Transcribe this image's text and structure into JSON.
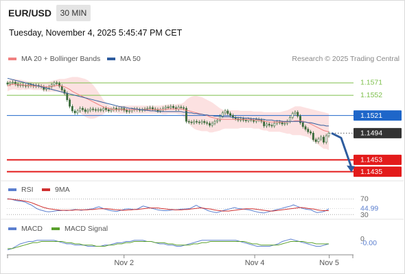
{
  "header": {
    "symbol": "EUR/USD",
    "timeframe": "30 MIN",
    "datetime": "Tuesday, November 4, 2025 5:45:47 PM CET"
  },
  "colors": {
    "ma20": "#f08080",
    "ma50": "#2e5c9e",
    "band_fill": "#fbdcdc",
    "candle": "#3b6b3b",
    "resistance": "#7cbf4a",
    "pivot": "#1e66c9",
    "support": "#e31b1b",
    "current_price": "#333333",
    "rsi": "#5b7fcf",
    "rsi_ma": "#d03030",
    "macd": "#5b7fcf",
    "macd_signal": "#5aa02c",
    "arrow": "#2e5c9e"
  },
  "chart_data": [
    {
      "type": "candlestick",
      "panel": "price",
      "legend": [
        {
          "label": "MA 20 + Bollinger Bands",
          "color_key": "ma20"
        },
        {
          "label": "MA 50",
          "color_key": "ma50"
        }
      ],
      "legend_placement": "top-left",
      "source": "Research © 2025 Trading Central",
      "x_ticks": [
        "Nov 2",
        "Nov 4",
        "Nov 5"
      ],
      "ylim": [
        1.1423,
        1.1593
      ],
      "levels": [
        {
          "label": "1.1571",
          "value": 1.1571,
          "kind": "resistance"
        },
        {
          "label": "1.1552",
          "value": 1.1552,
          "kind": "resistance"
        },
        {
          "label": "1.1521",
          "value": 1.1521,
          "kind": "pivot"
        },
        {
          "label": "1.1494",
          "value": 1.1494,
          "kind": "current"
        },
        {
          "label": "1.1453",
          "value": 1.1453,
          "kind": "support"
        },
        {
          "label": "1.1435",
          "value": 1.1435,
          "kind": "support"
        }
      ],
      "close": [
        1.1569,
        1.1571,
        1.1572,
        1.1569,
        1.1567,
        1.1568,
        1.1567,
        1.1566,
        1.1568,
        1.1567,
        1.1566,
        1.1567,
        1.1566,
        1.1565,
        1.1561,
        1.1563,
        1.1565,
        1.1568,
        1.1571,
        1.157,
        1.1566,
        1.156,
        1.1555,
        1.1545,
        1.1535,
        1.1528,
        1.1525,
        1.1528,
        1.1532,
        1.153,
        1.1527,
        1.1529,
        1.1531,
        1.153,
        1.1529,
        1.153,
        1.1529,
        1.1532,
        1.153,
        1.1528,
        1.153,
        1.1532,
        1.153,
        1.1531,
        1.1532,
        1.1529,
        1.1527,
        1.1528,
        1.153,
        1.1531,
        1.153,
        1.1529,
        1.153,
        1.1531,
        1.1532,
        1.1533,
        1.1531,
        1.153,
        1.1528,
        1.153,
        1.1532,
        1.1534,
        1.1533,
        1.1535,
        1.1533,
        1.1531,
        1.1534,
        1.1533,
        1.1532,
        1.1512,
        1.1511,
        1.151,
        1.1512,
        1.1511,
        1.151,
        1.1512,
        1.151,
        1.1509,
        1.1506,
        1.1509,
        1.1512,
        1.1514,
        1.152,
        1.1525,
        1.1528,
        1.1524,
        1.1521,
        1.1518,
        1.1516,
        1.1514,
        1.1516,
        1.1514,
        1.1513,
        1.1515,
        1.1514,
        1.1512,
        1.1515,
        1.1514,
        1.1512,
        1.1505,
        1.1508,
        1.1506,
        1.1505,
        1.1509,
        1.1511,
        1.151,
        1.1508,
        1.1509,
        1.1512,
        1.1518,
        1.1524,
        1.1526,
        1.152,
        1.151,
        1.1504,
        1.15,
        1.1496,
        1.1494,
        1.1484,
        1.1481,
        1.1485,
        1.1488,
        1.148,
        1.149,
        1.1494
      ],
      "ma20": [
        1.1566,
        1.1568,
        1.1569,
        1.1569,
        1.1568,
        1.1568,
        1.1568,
        1.1567,
        1.1567,
        1.1567,
        1.1566,
        1.1566,
        1.1566,
        1.1566,
        1.1565,
        1.1565,
        1.1565,
        1.1566,
        1.1566,
        1.1567,
        1.1567,
        1.1566,
        1.1565,
        1.1563,
        1.1561,
        1.1558,
        1.1556,
        1.1554,
        1.1552,
        1.155,
        1.1548,
        1.1546,
        1.1544,
        1.1542,
        1.154,
        1.1538,
        1.1536,
        1.1534,
        1.1533,
        1.1532,
        1.1531,
        1.153,
        1.153,
        1.153,
        1.153,
        1.153,
        1.153,
        1.153,
        1.153,
        1.153,
        1.153,
        1.153,
        1.153,
        1.153,
        1.153,
        1.153,
        1.153,
        1.153,
        1.153,
        1.153,
        1.153,
        1.153,
        1.1531,
        1.1531,
        1.1531,
        1.1531,
        1.1531,
        1.1531,
        1.153,
        1.1529,
        1.1528,
        1.1527,
        1.1526,
        1.1525,
        1.1524,
        1.1523,
        1.1522,
        1.1521,
        1.1519,
        1.1518,
        1.1517,
        1.1516,
        1.1515,
        1.1515,
        1.1515,
        1.1515,
        1.1515,
        1.1515,
        1.1515,
        1.1515,
        1.1515,
        1.1515,
        1.1515,
        1.1515,
        1.1515,
        1.1514,
        1.1514,
        1.1514,
        1.1513,
        1.1512,
        1.1512,
        1.1511,
        1.1511,
        1.1511,
        1.1511,
        1.1511,
        1.1511,
        1.1511,
        1.1511,
        1.1512,
        1.1512,
        1.1513,
        1.1513,
        1.1513,
        1.1512,
        1.1511,
        1.151,
        1.1508,
        1.1506,
        1.1504,
        1.1502,
        1.15,
        1.1498,
        1.1497,
        1.1496
      ],
      "bb_upper": [
        1.1574,
        1.1576,
        1.1577,
        1.1577,
        1.1576,
        1.1576,
        1.1575,
        1.1574,
        1.1573,
        1.1573,
        1.1572,
        1.1572,
        1.1572,
        1.1572,
        1.1572,
        1.1572,
        1.1573,
        1.1574,
        1.1575,
        1.1576,
        1.1577,
        1.1577,
        1.1577,
        1.1578,
        1.1579,
        1.158,
        1.158,
        1.158,
        1.1579,
        1.1578,
        1.1577,
        1.1575,
        1.1572,
        1.1568,
        1.1563,
        1.1557,
        1.1551,
        1.1545,
        1.154,
        1.1537,
        1.1535,
        1.1535,
        1.1535,
        1.1536,
        1.1536,
        1.1536,
        1.1536,
        1.1536,
        1.1536,
        1.1536,
        1.1536,
        1.1536,
        1.1536,
        1.1536,
        1.1536,
        1.1536,
        1.1536,
        1.1536,
        1.1536,
        1.1536,
        1.1537,
        1.1537,
        1.1538,
        1.1538,
        1.1538,
        1.1538,
        1.1539,
        1.1539,
        1.1541,
        1.1545,
        1.1548,
        1.155,
        1.1551,
        1.1551,
        1.155,
        1.1549,
        1.1547,
        1.1545,
        1.1543,
        1.1541,
        1.1538,
        1.1535,
        1.1532,
        1.153,
        1.1529,
        1.1529,
        1.1529,
        1.1529,
        1.1529,
        1.1529,
        1.1528,
        1.1528,
        1.1528,
        1.1528,
        1.1528,
        1.1527,
        1.1527,
        1.1527,
        1.1527,
        1.1526,
        1.1526,
        1.1526,
        1.1526,
        1.1526,
        1.1526,
        1.1526,
        1.1527,
        1.1528,
        1.1529,
        1.1531,
        1.1533,
        1.1535,
        1.1535,
        1.1535,
        1.1534,
        1.1533,
        1.1532,
        1.1531,
        1.153,
        1.1529,
        1.1528,
        1.1527,
        1.1526,
        1.1525,
        1.1524
      ],
      "bb_lower": [
        1.1558,
        1.156,
        1.1561,
        1.1561,
        1.156,
        1.156,
        1.1561,
        1.156,
        1.1561,
        1.1561,
        1.156,
        1.156,
        1.156,
        1.156,
        1.1558,
        1.1558,
        1.1557,
        1.1558,
        1.1557,
        1.1558,
        1.1557,
        1.1555,
        1.1553,
        1.1548,
        1.1543,
        1.1536,
        1.1532,
        1.1528,
        1.1525,
        1.1522,
        1.1519,
        1.1517,
        1.1516,
        1.1516,
        1.1517,
        1.1519,
        1.1521,
        1.1523,
        1.1526,
        1.1527,
        1.1527,
        1.1525,
        1.1525,
        1.1524,
        1.1524,
        1.1524,
        1.1524,
        1.1524,
        1.1524,
        1.1524,
        1.1524,
        1.1524,
        1.1524,
        1.1524,
        1.1524,
        1.1524,
        1.1524,
        1.1524,
        1.1524,
        1.1524,
        1.1523,
        1.1523,
        1.1524,
        1.1524,
        1.1524,
        1.1524,
        1.1523,
        1.1523,
        1.1519,
        1.1513,
        1.1508,
        1.1504,
        1.1501,
        1.1499,
        1.1498,
        1.1497,
        1.1497,
        1.1497,
        1.1495,
        1.1495,
        1.1496,
        1.1497,
        1.1498,
        1.15,
        1.1501,
        1.1501,
        1.1501,
        1.1501,
        1.1501,
        1.1501,
        1.1502,
        1.1502,
        1.1502,
        1.1502,
        1.1502,
        1.1501,
        1.1501,
        1.1501,
        1.1499,
        1.1498,
        1.1498,
        1.1496,
        1.1496,
        1.1496,
        1.1496,
        1.1496,
        1.1495,
        1.1494,
        1.1493,
        1.1493,
        1.1491,
        1.1491,
        1.1491,
        1.1491,
        1.149,
        1.1489,
        1.1488,
        1.1485,
        1.1482,
        1.1479,
        1.1476,
        1.1473,
        1.147,
        1.147,
        1.1468
      ],
      "ma50": [
        1.1578,
        1.1577,
        1.1576,
        1.1575,
        1.1574,
        1.1573,
        1.1572,
        1.1571,
        1.157,
        1.1569,
        1.1568,
        1.1567,
        1.1566,
        1.1565,
        1.1564,
        1.1563,
        1.1562,
        1.1561,
        1.156,
        1.1559,
        1.1558,
        1.1557,
        1.1556,
        1.1555,
        1.1554,
        1.1553,
        1.1552,
        1.1551,
        1.155,
        1.1549,
        1.1548,
        1.1547,
        1.1546,
        1.1545,
        1.1544,
        1.1543,
        1.1542,
        1.1541,
        1.154,
        1.1539,
        1.1538,
        1.1537,
        1.1536,
        1.1535,
        1.1534,
        1.1534,
        1.1533,
        1.1532,
        1.1532,
        1.1531,
        1.1531,
        1.153,
        1.153,
        1.1529,
        1.1529,
        1.1528,
        1.1528,
        1.1528,
        1.1527,
        1.1527,
        1.1527,
        1.1527,
        1.1527,
        1.1527,
        1.1527,
        1.1527,
        1.1527,
        1.1527,
        1.1526,
        1.1526,
        1.1525,
        1.1525,
        1.1524,
        1.1524,
        1.1523,
        1.1523,
        1.1522,
        1.1522,
        1.1521,
        1.1521,
        1.152,
        1.152,
        1.152,
        1.1519,
        1.1519,
        1.1519,
        1.1519,
        1.1518,
        1.1518,
        1.1518,
        1.1518,
        1.1517,
        1.1517,
        1.1517,
        1.1516,
        1.1516,
        1.1516,
        1.1515,
        1.1515,
        1.1515,
        1.1514,
        1.1514,
        1.1514,
        1.1513,
        1.1513,
        1.1513,
        1.1512,
        1.1512,
        1.1512,
        1.1512,
        1.1512,
        1.1512,
        1.1512,
        1.1512,
        1.1511,
        1.1511,
        1.151,
        1.151,
        1.1509,
        1.1508,
        1.1507,
        1.1506,
        1.1506,
        1.1505,
        1.1505
      ],
      "projection": {
        "from": 1.1494,
        "to": 1.1435
      }
    },
    {
      "type": "line",
      "panel": "rsi",
      "legend": [
        {
          "label": "RSI",
          "color_key": "rsi"
        },
        {
          "label": "9MA",
          "color_key": "rsi_ma"
        }
      ],
      "ylim": [
        25,
        80
      ],
      "levels": [
        70,
        30
      ],
      "axis_labels": [
        {
          "label": "70",
          "value": 70
        },
        {
          "label": "44.99",
          "value": 44.99
        },
        {
          "label": "30",
          "value": 30
        }
      ],
      "rsi": [
        71,
        70,
        68,
        66,
        65,
        64,
        62,
        58,
        55,
        50,
        45,
        42,
        40,
        38,
        37,
        38,
        39,
        40,
        40,
        41,
        40,
        41,
        42,
        43,
        42,
        41,
        42,
        43,
        44,
        45,
        48,
        50,
        47,
        44,
        42,
        40,
        39,
        38,
        40,
        42,
        44,
        45,
        44,
        43,
        44,
        48,
        52,
        50,
        48,
        46,
        44,
        42,
        41,
        40,
        40,
        41,
        42,
        42,
        43,
        44,
        44,
        45,
        46,
        50,
        54,
        50,
        47,
        44,
        40,
        38,
        36,
        35,
        37,
        40,
        42,
        44,
        46,
        48,
        46,
        45,
        44,
        43,
        42,
        40,
        38,
        36,
        35,
        34,
        36,
        38,
        40,
        42,
        44,
        46,
        48,
        50,
        52,
        55,
        52,
        49,
        46,
        44,
        43,
        42,
        38,
        35,
        36,
        37,
        40,
        45
      ],
      "rsi_ma": [
        70,
        70,
        69,
        68,
        67,
        66,
        65,
        63,
        61,
        58,
        55,
        52,
        49,
        47,
        45,
        44,
        43,
        42,
        41,
        41,
        41,
        41,
        41,
        42,
        42,
        42,
        42,
        42,
        43,
        43,
        44,
        45,
        45,
        45,
        45,
        44,
        43,
        42,
        42,
        41,
        41,
        42,
        42,
        43,
        43,
        44,
        45,
        46,
        47,
        47,
        47,
        47,
        46,
        45,
        44,
        43,
        43,
        42,
        42,
        42,
        43,
        43,
        44,
        45,
        46,
        47,
        47,
        46,
        45,
        44,
        42,
        41,
        40,
        39,
        39,
        39,
        40,
        41,
        42,
        43,
        44,
        45,
        45,
        45,
        44,
        43,
        42,
        41,
        40,
        39,
        39,
        40,
        41,
        42,
        43,
        44,
        45,
        46,
        47,
        48,
        48,
        47,
        46,
        45,
        44,
        42,
        41,
        40,
        40,
        40
      ]
    },
    {
      "type": "line",
      "panel": "macd",
      "legend": [
        {
          "label": "MACD",
          "color_key": "macd"
        },
        {
          "label": "MACD Signal",
          "color_key": "macd_signal"
        }
      ],
      "ylim": [
        -0.0012,
        0.0004
      ],
      "axis_labels": [
        {
          "label": "0",
          "value": 0
        },
        {
          "label": "-0.00",
          "value": -0.00036
        }
      ],
      "macd": [
        -0.0009,
        -0.0008,
        -0.0006,
        -0.0004,
        -0.0003,
        -0.0002,
        -0.0002,
        -0.0001,
        -0.0001,
        -0.0001,
        -0.0001,
        -0.0001,
        -0.0002,
        -0.0003,
        -0.0004,
        -0.0004,
        -0.0005,
        -0.0005,
        -0.0005,
        -0.0006,
        -0.0006,
        -0.0006,
        -0.0006,
        -0.0005,
        -0.0005,
        -0.0004,
        -0.0003,
        -0.0003,
        -0.0002,
        -0.0002,
        -0.0001,
        -0.0001,
        -0.0001,
        -0.0002,
        -0.0002,
        -0.0003,
        -0.0004,
        -0.0004,
        -0.0005,
        -0.0005,
        -0.0006,
        -0.0006,
        -0.0005,
        -0.0004,
        -0.0003,
        -0.0002,
        -0.0001,
        -0.0001,
        -0.0001,
        -0.0001,
        -0.0001,
        -0.0001,
        -0.0001,
        -0.0001,
        -0.0001,
        -0.0002,
        -0.0003,
        -0.0004,
        -0.0005,
        -0.0006,
        -0.0006,
        -0.0006,
        -0.0006,
        -0.0005,
        -0.0004,
        -0.0002,
        -0.0001,
        0.0,
        -0.0001,
        -0.0002,
        -0.0003,
        -0.0004,
        -0.0005,
        -0.0006,
        -0.0006,
        -0.0005,
        -0.0004
      ],
      "macd_signal": [
        -0.0008,
        -0.0008,
        -0.0007,
        -0.0006,
        -0.0005,
        -0.0004,
        -0.0003,
        -0.0003,
        -0.0002,
        -0.0002,
        -0.0002,
        -0.0002,
        -0.0002,
        -0.0002,
        -0.0003,
        -0.0003,
        -0.0004,
        -0.0004,
        -0.0005,
        -0.0005,
        -0.0005,
        -0.0006,
        -0.0006,
        -0.0006,
        -0.0005,
        -0.0005,
        -0.0004,
        -0.0004,
        -0.0003,
        -0.0003,
        -0.0002,
        -0.0002,
        -0.0002,
        -0.0002,
        -0.0002,
        -0.0003,
        -0.0003,
        -0.0003,
        -0.0004,
        -0.0004,
        -0.0005,
        -0.0005,
        -0.0005,
        -0.0005,
        -0.0004,
        -0.0004,
        -0.0003,
        -0.0003,
        -0.0002,
        -0.0002,
        -0.0002,
        -0.0002,
        -0.0002,
        -0.0002,
        -0.0002,
        -0.0002,
        -0.0002,
        -0.0003,
        -0.0004,
        -0.0004,
        -0.0005,
        -0.0005,
        -0.0005,
        -0.0005,
        -0.0005,
        -0.0004,
        -0.0003,
        -0.0002,
        -0.0002,
        -0.0002,
        -0.0002,
        -0.0003,
        -0.0003,
        -0.0004,
        -0.0004,
        -0.0004,
        -0.0004
      ]
    }
  ]
}
